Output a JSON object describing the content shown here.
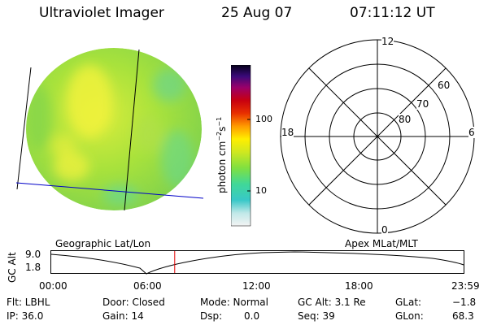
{
  "header": {
    "title": "Ultraviolet Imager",
    "date": "25 Aug 07",
    "time": "07:11:12 UT"
  },
  "colorbar": {
    "label": "photon cm",
    "label_exp1": "−2",
    "label_s": "s",
    "label_exp2": "−1",
    "tick_100": "100",
    "tick_10": "10"
  },
  "polar_plot": {
    "top": "12",
    "bottom": "0",
    "left": "18",
    "right": "6",
    "lat_60": "60",
    "lat_70": "70",
    "lat_80": "80"
  },
  "labels": {
    "geographic": "Geographic Lat/Lon",
    "apex": "Apex MLat/MLT"
  },
  "altitude_plot": {
    "axis_label": "GC Alt",
    "y_top": "9.0",
    "y_bottom": "1.8",
    "x_ticks": [
      "00:00",
      "06:00",
      "12:00",
      "18:00",
      "23:59"
    ],
    "current_time_fraction": 0.2994
  },
  "info": {
    "flt": "Flt: LBHL",
    "ip": "IP: 36.0",
    "door": "Door: Closed",
    "gain": "Gain: 14",
    "mode": "Mode: Normal",
    "dsp_label": "Dsp:",
    "dsp_value": "0.0",
    "gc_alt": "GC Alt: 3.1 Re",
    "seq": "Seq: 39",
    "glat_label": "GLat:",
    "glat_value": "−1.8",
    "glon_label": "GLon:",
    "glon_value": "68.3"
  },
  "colors": {
    "background": "#ffffff",
    "image_base": "#a8e23c",
    "image_light": "#e0ee3a",
    "image_cyan": "#50d8a0",
    "geo_line": "#0000c8",
    "time_marker": "#e00000"
  }
}
